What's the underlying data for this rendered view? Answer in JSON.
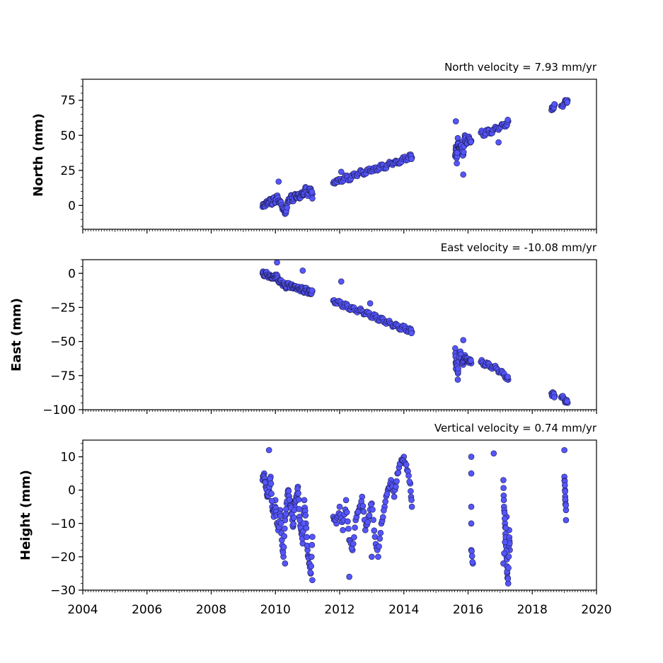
{
  "chart_data": [
    {
      "type": "scatter",
      "title": "North velocity = 7.93 mm/yr",
      "ylabel": "North (mm)",
      "xlim": [
        2004,
        2020
      ],
      "ylim": [
        -17,
        90
      ],
      "yticks": [
        0,
        25,
        50,
        75
      ],
      "marker_color": "#5555ff",
      "series": [
        {
          "x": [
            2009.6,
            2009.65,
            2009.7,
            2009.75,
            2009.8,
            2009.85,
            2009.9,
            2009.95,
            2010.0,
            2010.05,
            2010.1,
            2010.15,
            2010.2,
            2010.25,
            2010.3,
            2010.35,
            2010.4,
            2010.45,
            2010.5,
            2010.55,
            2010.6,
            2010.65,
            2010.7,
            2010.75,
            2010.8,
            2010.85,
            2010.9,
            2010.95,
            2011.0,
            2011.05,
            2011.1,
            2011.15,
            2010.1,
            2011.15,
            2011.8,
            2011.9,
            2012.0,
            2012.1,
            2012.2,
            2012.3,
            2012.4,
            2012.5,
            2012.6,
            2012.7,
            2012.8,
            2012.9,
            2013.0,
            2013.1,
            2013.2,
            2013.3,
            2013.4,
            2013.5,
            2013.6,
            2013.7,
            2013.8,
            2013.9,
            2014.0,
            2014.1,
            2014.2,
            2014.25,
            2012.05,
            2015.6,
            2015.62,
            2015.65,
            2015.68,
            2015.7,
            2015.75,
            2015.8,
            2015.85,
            2015.9,
            2015.95,
            2016.0,
            2016.05,
            2016.1,
            2015.62,
            2015.85,
            2016.4,
            2016.5,
            2016.6,
            2016.7,
            2016.8,
            2016.9,
            2017.0,
            2017.1,
            2017.2,
            2017.25,
            2016.95,
            2018.6,
            2018.65,
            2018.7,
            2018.9,
            2019.0,
            2019.05,
            2019.1
          ],
          "y": [
            -1,
            1,
            0,
            3,
            2,
            4,
            1,
            5,
            3,
            6,
            4,
            2,
            0,
            -3,
            -6,
            -2,
            3,
            5,
            6,
            4,
            7,
            6,
            8,
            5,
            9,
            7,
            10,
            12,
            8,
            10,
            12,
            8,
            17,
            5,
            16,
            18,
            17,
            19,
            20,
            19,
            21,
            22,
            23,
            24,
            23,
            25,
            26,
            25,
            27,
            28,
            27,
            29,
            30,
            31,
            30,
            32,
            33,
            34,
            35,
            34,
            24,
            35,
            42,
            30,
            48,
            38,
            45,
            40,
            36,
            50,
            44,
            48,
            47,
            46,
            60,
            22,
            52,
            51,
            53,
            52,
            54,
            55,
            56,
            57,
            58,
            60,
            45,
            68,
            70,
            72,
            71,
            73,
            74,
            75
          ]
        }
      ]
    },
    {
      "type": "scatter",
      "title": "East velocity = -10.08 mm/yr",
      "ylabel": "East (mm)",
      "xlim": [
        2004,
        2020
      ],
      "ylim": [
        -100,
        10
      ],
      "yticks": [
        -100,
        -75,
        -50,
        -25,
        0
      ],
      "marker_color": "#5555ff",
      "series": [
        {
          "x": [
            2009.6,
            2009.65,
            2009.7,
            2009.75,
            2009.8,
            2009.85,
            2009.9,
            2009.95,
            2010.0,
            2010.05,
            2010.1,
            2010.15,
            2010.2,
            2010.25,
            2010.3,
            2010.35,
            2010.4,
            2010.45,
            2010.5,
            2010.55,
            2010.6,
            2010.65,
            2010.7,
            2010.75,
            2010.8,
            2010.85,
            2010.9,
            2010.95,
            2011.0,
            2011.05,
            2011.1,
            2011.15,
            2010.05,
            2010.85,
            2011.8,
            2011.9,
            2012.0,
            2012.1,
            2012.2,
            2012.3,
            2012.4,
            2012.5,
            2012.6,
            2012.7,
            2012.8,
            2012.9,
            2013.0,
            2013.1,
            2013.2,
            2013.3,
            2013.4,
            2013.5,
            2013.6,
            2013.7,
            2013.8,
            2013.9,
            2014.0,
            2014.1,
            2014.2,
            2014.25,
            2012.05,
            2012.95,
            2015.6,
            2015.62,
            2015.65,
            2015.68,
            2015.7,
            2015.75,
            2015.8,
            2015.85,
            2015.9,
            2015.95,
            2016.0,
            2016.05,
            2016.1,
            2015.85,
            2016.4,
            2016.5,
            2016.6,
            2016.7,
            2016.8,
            2016.9,
            2017.0,
            2017.1,
            2017.2,
            2017.25,
            2018.6,
            2018.65,
            2018.7,
            2018.9,
            2019.0,
            2019.05,
            2019.1
          ],
          "y": [
            0,
            -1,
            0,
            -1,
            -2,
            -3,
            -2,
            -4,
            -1,
            -3,
            -5,
            -6,
            -7,
            -8,
            -9,
            -10,
            -8,
            -9,
            -10,
            -9,
            -11,
            -10,
            -11,
            -12,
            -11,
            -12,
            -13,
            -12,
            -13,
            -14,
            -14,
            -13,
            8,
            2,
            -20,
            -21,
            -22,
            -23,
            -24,
            -25,
            -26,
            -27,
            -27,
            -28,
            -29,
            -30,
            -31,
            -32,
            -33,
            -34,
            -35,
            -36,
            -37,
            -38,
            -39,
            -40,
            -40,
            -41,
            -42,
            -43,
            -6,
            -22,
            -55,
            -70,
            -60,
            -78,
            -65,
            -58,
            -62,
            -67,
            -60,
            -63,
            -65,
            -63,
            -66,
            -49,
            -65,
            -66,
            -67,
            -68,
            -69,
            -70,
            -72,
            -74,
            -76,
            -78,
            -88,
            -89,
            -90,
            -91,
            -92,
            -94,
            -95
          ]
        }
      ]
    },
    {
      "type": "scatter",
      "title": "Vertical velocity = 0.74 mm/yr",
      "ylabel": "Height (mm)",
      "xlim": [
        2004,
        2020
      ],
      "ylim": [
        -30,
        15
      ],
      "yticks": [
        -30,
        -20,
        -10,
        0,
        10
      ],
      "marker_color": "#5555ff",
      "series": [
        {
          "x": [
            2009.6,
            2009.65,
            2009.7,
            2009.75,
            2009.8,
            2009.85,
            2009.9,
            2009.95,
            2010.0,
            2010.05,
            2010.1,
            2010.15,
            2010.2,
            2010.25,
            2010.3,
            2010.35,
            2010.4,
            2010.45,
            2010.5,
            2010.55,
            2010.6,
            2010.65,
            2010.7,
            2010.75,
            2010.8,
            2010.85,
            2010.9,
            2010.95,
            2011.0,
            2011.05,
            2011.1,
            2011.15,
            2009.8,
            2010.3,
            2011.15,
            2011.8,
            2011.9,
            2012.0,
            2012.1,
            2012.2,
            2012.3,
            2012.4,
            2012.5,
            2012.6,
            2012.7,
            2012.8,
            2012.9,
            2013.0,
            2013.1,
            2013.2,
            2013.3,
            2013.4,
            2013.5,
            2013.6,
            2013.7,
            2013.8,
            2013.9,
            2014.0,
            2014.1,
            2014.2,
            2014.25,
            2012.3,
            2013.0,
            2016.1,
            2016.1,
            2016.1,
            2016.1,
            2016.1,
            2016.15,
            2016.8,
            2017.1,
            2017.12,
            2017.15,
            2017.18,
            2017.2,
            2017.22,
            2017.25,
            2017.28,
            2017.3,
            2017.1,
            2017.2,
            2019.0,
            2019.0,
            2019.02,
            2019.03,
            2019.05,
            2019.05
          ],
          "y": [
            3,
            5,
            1,
            -2,
            0,
            4,
            -5,
            -8,
            -3,
            -10,
            -12,
            -6,
            -15,
            -20,
            -9,
            -4,
            0,
            -3,
            -7,
            -11,
            -5,
            -2,
            1,
            -8,
            -12,
            -16,
            -3,
            -10,
            -18,
            -22,
            -25,
            -14,
            12,
            -22,
            -27,
            -8,
            -10,
            -5,
            -12,
            -3,
            -15,
            -18,
            -9,
            -6,
            -2,
            -12,
            -8,
            -4,
            -14,
            -20,
            -10,
            -5,
            0,
            3,
            -2,
            5,
            8,
            10,
            6,
            2,
            -5,
            -26,
            -20,
            10,
            5,
            -5,
            -10,
            -18,
            -22,
            11,
            3,
            -5,
            -10,
            -15,
            -20,
            -25,
            -28,
            -12,
            -18,
            -22,
            -8,
            12,
            4,
            0,
            -3,
            -6,
            -9
          ]
        }
      ]
    }
  ],
  "x_tick_labels": [
    "2004",
    "2006",
    "2008",
    "2010",
    "2012",
    "2014",
    "2016",
    "2018",
    "2020"
  ]
}
